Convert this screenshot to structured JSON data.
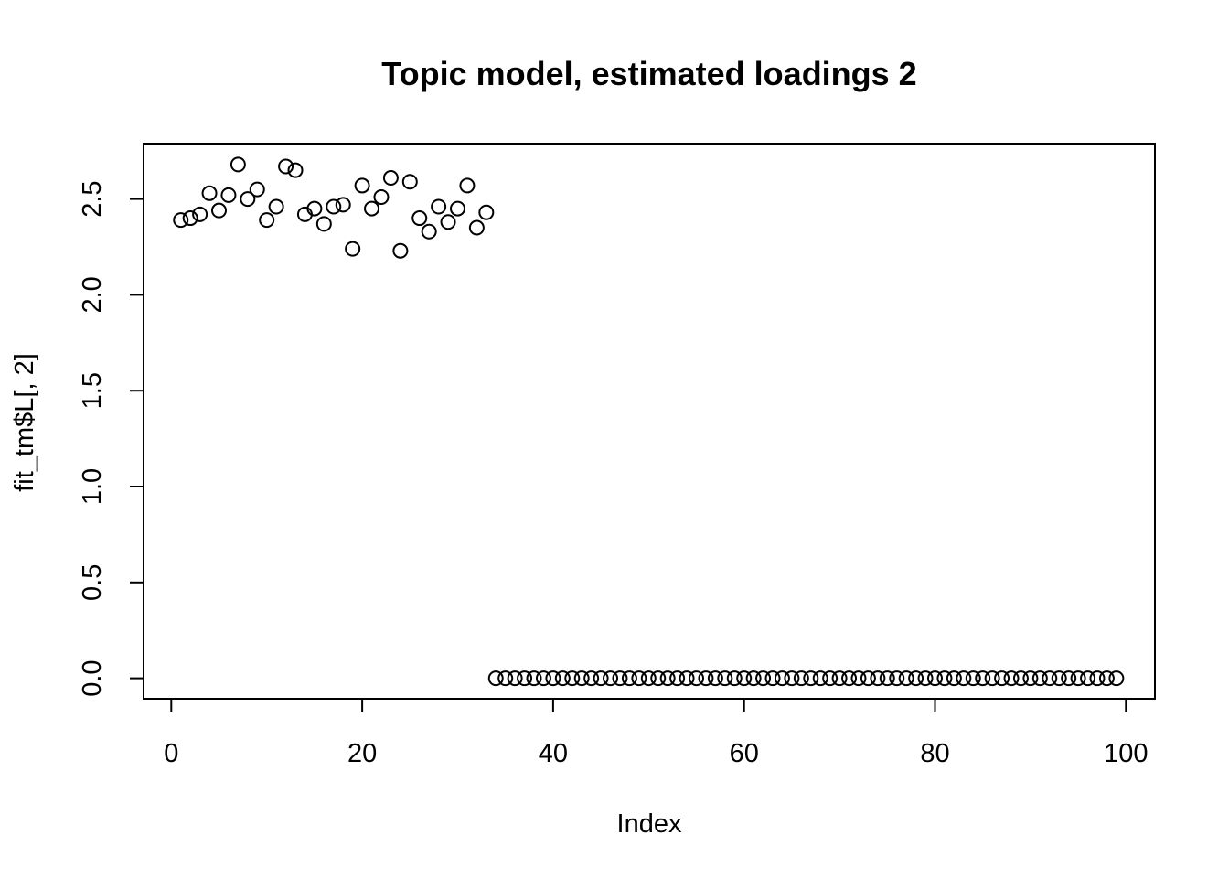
{
  "chart_data": {
    "type": "scatter",
    "title": "Topic model, estimated loadings 2",
    "xlabel": "Index",
    "ylabel": "fit_tm$L[, 2]",
    "xlim": [
      0,
      100
    ],
    "ylim": [
      0,
      2.7
    ],
    "xticks": [
      0,
      20,
      40,
      60,
      80,
      100
    ],
    "yticks": [
      0.0,
      0.5,
      1.0,
      1.5,
      2.0,
      2.5
    ],
    "xtick_labels": [
      "0",
      "20",
      "40",
      "60",
      "80",
      "100"
    ],
    "ytick_labels": [
      "0.0",
      "0.5",
      "1.0",
      "1.5",
      "2.0",
      "2.5"
    ],
    "grid": false,
    "marker": "open-circle",
    "series": [
      {
        "x": [
          1,
          2,
          3,
          4,
          5,
          6,
          7,
          8,
          9,
          10,
          11,
          12,
          13,
          14,
          15,
          16,
          17,
          18,
          19,
          20,
          21,
          22,
          23,
          24,
          25,
          26,
          27,
          28,
          29,
          30,
          31,
          32,
          33,
          34,
          35,
          36,
          37,
          38,
          39,
          40,
          41,
          42,
          43,
          44,
          45,
          46,
          47,
          48,
          49,
          50,
          51,
          52,
          53,
          54,
          55,
          56,
          57,
          58,
          59,
          60,
          61,
          62,
          63,
          64,
          65,
          66,
          67,
          68,
          69,
          70,
          71,
          72,
          73,
          74,
          75,
          76,
          77,
          78,
          79,
          80,
          81,
          82,
          83,
          84,
          85,
          86,
          87,
          88,
          89,
          90,
          91,
          92,
          93,
          94,
          95,
          96,
          97,
          98,
          99
        ],
        "y": [
          2.39,
          2.4,
          2.42,
          2.53,
          2.44,
          2.52,
          2.68,
          2.5,
          2.55,
          2.39,
          2.46,
          2.67,
          2.65,
          2.42,
          2.45,
          2.37,
          2.46,
          2.47,
          2.24,
          2.57,
          2.45,
          2.51,
          2.61,
          2.23,
          2.59,
          2.4,
          2.33,
          2.46,
          2.38,
          2.45,
          2.57,
          2.35,
          2.43,
          0,
          0,
          0,
          0,
          0,
          0,
          0,
          0,
          0,
          0,
          0,
          0,
          0,
          0,
          0,
          0,
          0,
          0,
          0,
          0,
          0,
          0,
          0,
          0,
          0,
          0,
          0,
          0,
          0,
          0,
          0,
          0,
          0,
          0,
          0,
          0,
          0,
          0,
          0,
          0,
          0,
          0,
          0,
          0,
          0,
          0,
          0,
          0,
          0,
          0,
          0,
          0,
          0,
          0,
          0,
          0,
          0,
          0,
          0,
          0,
          0,
          0,
          0,
          0,
          0,
          0
        ]
      }
    ]
  }
}
